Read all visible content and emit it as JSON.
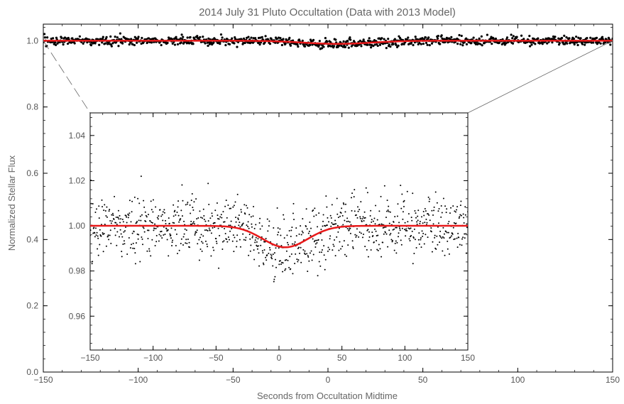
{
  "chart_data": {
    "type": "scatter",
    "title": "2014 July 31 Pluto Occultation (Data with 2013 Model)",
    "xlabel": "Seconds from Occultation Midtime",
    "ylabel": "Normalized Stellar Flux",
    "main": {
      "xlim": [
        -150,
        150
      ],
      "ylim": [
        0.0,
        1.05
      ],
      "xticks": [
        -150,
        -100,
        -50,
        0,
        50,
        100,
        150
      ],
      "xtick_labels": [
        "−150",
        "−100",
        "−50",
        "0",
        "50",
        "100",
        "150"
      ],
      "yticks": [
        0.0,
        0.2,
        0.4,
        0.6,
        0.8,
        1.0
      ],
      "ytick_labels": [
        "0.0",
        "0.2",
        "0.4",
        "0.6",
        "0.8",
        "1.0"
      ]
    },
    "inset": {
      "xlim": [
        -150,
        150
      ],
      "ylim": [
        0.945,
        1.05
      ],
      "xticks": [
        -150,
        -100,
        -50,
        0,
        50,
        100,
        150
      ],
      "xtick_labels": [
        "−150",
        "−100",
        "−50",
        "0",
        "50",
        "100",
        "150"
      ],
      "yticks": [
        0.96,
        0.98,
        1.0,
        1.02,
        1.04
      ],
      "ytick_labels": [
        "0.96",
        "0.98",
        "1.00",
        "1.02",
        "1.04"
      ]
    },
    "series": [
      {
        "kind": "observed-data",
        "color": "#000000",
        "description_points": "photometric samples, noise sigma ~0.006",
        "n_points": 1000,
        "noise_sigma": 0.0065,
        "x_range": [
          -150,
          150
        ]
      },
      {
        "kind": "model-curve",
        "color": "#e8191a",
        "baseline": 1.0,
        "center": 5,
        "min_flux": 0.9905,
        "half_width": 18,
        "x": [
          -150,
          -60,
          -40,
          -30,
          -20,
          -10,
          0,
          5,
          10,
          20,
          30,
          40,
          60,
          150
        ],
        "y": [
          1.0,
          1.0,
          0.9995,
          0.998,
          0.9955,
          0.992,
          0.9906,
          0.9905,
          0.9908,
          0.9935,
          0.997,
          0.9992,
          1.0,
          1.0
        ]
      }
    ],
    "grid": false,
    "legend": "none"
  }
}
